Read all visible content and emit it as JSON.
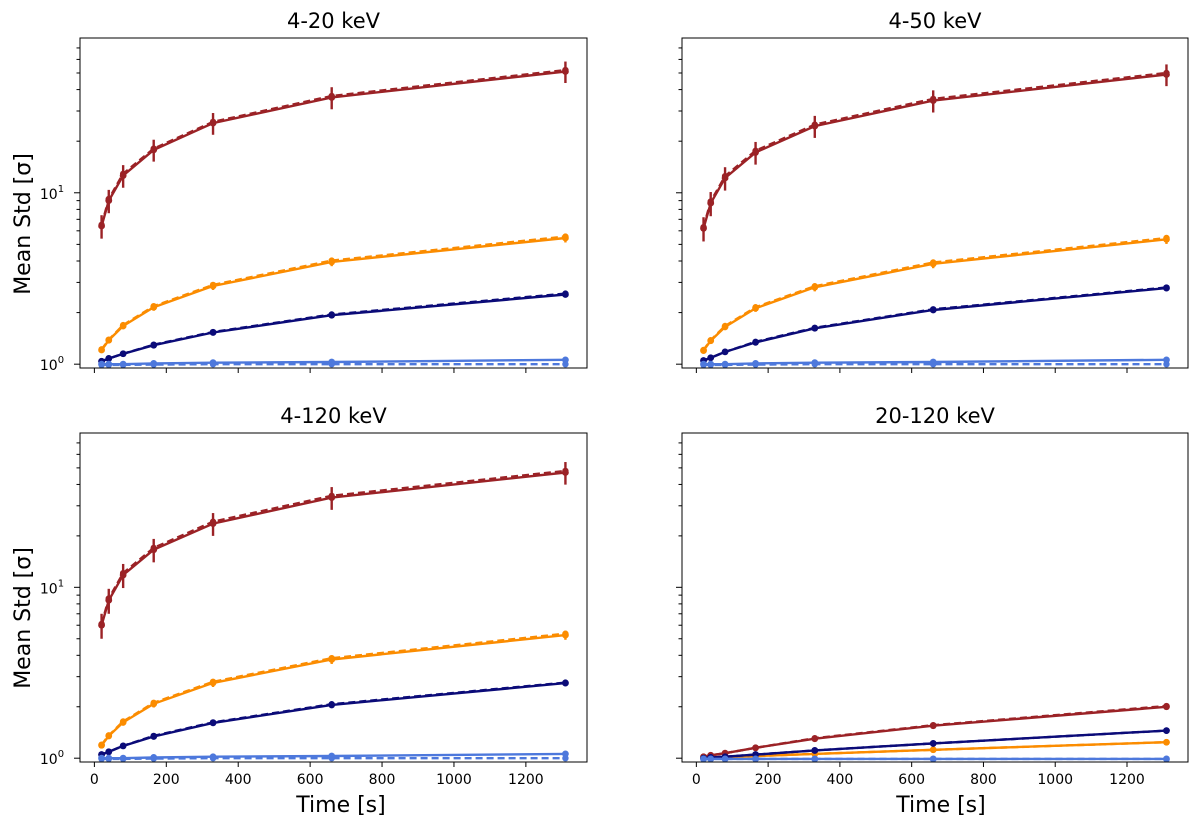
{
  "figure": {
    "ylabel": "Mean Std [σ]",
    "xlabel": "Time [s]",
    "colors": {
      "darkred": "#9b2226",
      "orange": "#fb8c00",
      "navy": "#0b0b78",
      "royalblue": "#4d78dc"
    }
  },
  "chart_data": [
    {
      "type": "line",
      "title": "4-20 keV",
      "xlabel": "",
      "ylabel": "Mean Std [σ]",
      "yscale": "log",
      "xlim": [
        -40,
        1370
      ],
      "ylim": [
        0.95,
        80
      ],
      "xticks": [
        0,
        200,
        400,
        600,
        800,
        1000,
        1200
      ],
      "yticks": [
        1,
        10
      ],
      "show_xticklabels": false,
      "show_yticklabels": true,
      "x": [
        20,
        40,
        80,
        165,
        330,
        660,
        1310
      ],
      "series": [
        {
          "color": "#9b2226",
          "solid": [
            6.4,
            9.0,
            12.6,
            17.8,
            25.5,
            36.0,
            51.0
          ],
          "dashed": [
            6.5,
            9.2,
            12.9,
            18.1,
            25.9,
            36.7,
            52.0
          ],
          "yerr": [
            1.0,
            1.4,
            1.9,
            2.6,
            3.7,
            5.3,
            7.3
          ]
        },
        {
          "color": "#fb8c00",
          "solid": [
            1.21,
            1.38,
            1.67,
            2.15,
            2.86,
            3.95,
            5.45
          ],
          "dashed": [
            1.22,
            1.39,
            1.69,
            2.18,
            2.9,
            4.02,
            5.55
          ],
          "yerr": [
            0.03,
            0.05,
            0.07,
            0.1,
            0.15,
            0.22,
            0.32
          ]
        },
        {
          "color": "#0b0b78",
          "solid": [
            1.04,
            1.08,
            1.15,
            1.29,
            1.53,
            1.93,
            2.55
          ],
          "dashed": [
            1.04,
            1.08,
            1.15,
            1.3,
            1.54,
            1.95,
            2.58
          ],
          "yerr": [
            0.01,
            0.01,
            0.02,
            0.02,
            0.03,
            0.04,
            0.05
          ]
        },
        {
          "color": "#4d78dc",
          "solid": [
            1.0,
            1.0,
            1.0,
            1.01,
            1.02,
            1.03,
            1.06
          ],
          "dashed": [
            0.99,
            0.99,
            0.99,
            0.995,
            1.0,
            1.0,
            1.0
          ],
          "yerr": [
            0.005,
            0.005,
            0.005,
            0.005,
            0.005,
            0.01,
            0.01
          ]
        }
      ]
    },
    {
      "type": "line",
      "title": "4-50 keV",
      "xlabel": "",
      "ylabel": "",
      "yscale": "log",
      "xlim": [
        -40,
        1370
      ],
      "ylim": [
        0.95,
        80
      ],
      "xticks": [
        0,
        200,
        400,
        600,
        800,
        1000,
        1200
      ],
      "yticks": [
        1,
        10
      ],
      "show_xticklabels": false,
      "show_yticklabels": false,
      "x": [
        20,
        40,
        80,
        165,
        330,
        660,
        1310
      ],
      "series": [
        {
          "color": "#9b2226",
          "solid": [
            6.2,
            8.7,
            12.2,
            17.2,
            24.5,
            34.5,
            49.0
          ],
          "dashed": [
            6.3,
            8.9,
            12.5,
            17.6,
            25.0,
            35.3,
            50.0
          ],
          "yerr": [
            1.0,
            1.4,
            1.9,
            2.6,
            3.6,
            5.1,
            7.1
          ]
        },
        {
          "color": "#fb8c00",
          "solid": [
            1.2,
            1.37,
            1.65,
            2.12,
            2.81,
            3.85,
            5.35
          ],
          "dashed": [
            1.21,
            1.38,
            1.67,
            2.15,
            2.85,
            3.92,
            5.45
          ],
          "yerr": [
            0.03,
            0.05,
            0.07,
            0.1,
            0.15,
            0.22,
            0.32
          ]
        },
        {
          "color": "#0b0b78",
          "solid": [
            1.05,
            1.09,
            1.18,
            1.34,
            1.62,
            2.07,
            2.78
          ],
          "dashed": [
            1.05,
            1.09,
            1.18,
            1.35,
            1.63,
            2.09,
            2.8
          ],
          "yerr": [
            0.01,
            0.01,
            0.02,
            0.02,
            0.03,
            0.04,
            0.05
          ]
        },
        {
          "color": "#4d78dc",
          "solid": [
            1.0,
            1.0,
            1.0,
            1.01,
            1.02,
            1.03,
            1.06
          ],
          "dashed": [
            0.99,
            0.99,
            0.99,
            0.995,
            1.0,
            1.0,
            1.0
          ],
          "yerr": [
            0.005,
            0.005,
            0.005,
            0.005,
            0.005,
            0.01,
            0.01
          ]
        }
      ]
    },
    {
      "type": "line",
      "title": "4-120 keV",
      "xlabel": "Time [s]",
      "ylabel": "Mean Std [σ]",
      "yscale": "log",
      "xlim": [
        -40,
        1370
      ],
      "ylim": [
        0.95,
        80
      ],
      "xticks": [
        0,
        200,
        400,
        600,
        800,
        1000,
        1200
      ],
      "yticks": [
        1,
        10
      ],
      "show_xticklabels": true,
      "show_yticklabels": true,
      "x": [
        20,
        40,
        80,
        165,
        330,
        660,
        1310
      ],
      "series": [
        {
          "color": "#9b2226",
          "solid": [
            6.0,
            8.4,
            11.8,
            16.6,
            23.6,
            33.5,
            47.0
          ],
          "dashed": [
            6.1,
            8.6,
            12.1,
            17.0,
            24.2,
            34.3,
            48.0
          ],
          "yerr": [
            1.0,
            1.4,
            1.9,
            2.6,
            3.6,
            5.1,
            7.1
          ]
        },
        {
          "color": "#fb8c00",
          "solid": [
            1.19,
            1.35,
            1.62,
            2.08,
            2.76,
            3.78,
            5.25
          ],
          "dashed": [
            1.2,
            1.36,
            1.64,
            2.11,
            2.8,
            3.85,
            5.35
          ],
          "yerr": [
            0.03,
            0.05,
            0.07,
            0.1,
            0.15,
            0.22,
            0.32
          ]
        },
        {
          "color": "#0b0b78",
          "solid": [
            1.05,
            1.09,
            1.18,
            1.34,
            1.61,
            2.05,
            2.75
          ],
          "dashed": [
            1.05,
            1.09,
            1.18,
            1.35,
            1.62,
            2.07,
            2.77
          ],
          "yerr": [
            0.01,
            0.01,
            0.02,
            0.02,
            0.03,
            0.04,
            0.05
          ]
        },
        {
          "color": "#4d78dc",
          "solid": [
            1.0,
            1.0,
            1.0,
            1.01,
            1.02,
            1.03,
            1.06
          ],
          "dashed": [
            0.99,
            0.99,
            0.99,
            0.995,
            1.0,
            1.0,
            1.0
          ],
          "yerr": [
            0.005,
            0.005,
            0.005,
            0.005,
            0.005,
            0.01,
            0.01
          ]
        }
      ]
    },
    {
      "type": "line",
      "title": "20-120 keV",
      "xlabel": "Time [s]",
      "ylabel": "",
      "yscale": "log",
      "xlim": [
        -40,
        1370
      ],
      "ylim": [
        0.95,
        80
      ],
      "xticks": [
        0,
        200,
        400,
        600,
        800,
        1000,
        1200
      ],
      "yticks": [
        1,
        10
      ],
      "show_xticklabels": true,
      "show_yticklabels": false,
      "x": [
        20,
        40,
        80,
        165,
        330,
        660,
        1310
      ],
      "series": [
        {
          "color": "#9b2226",
          "solid": [
            1.02,
            1.04,
            1.07,
            1.15,
            1.3,
            1.55,
            2.0
          ],
          "dashed": [
            1.02,
            1.04,
            1.07,
            1.15,
            1.31,
            1.56,
            2.02
          ],
          "yerr": [
            0.01,
            0.01,
            0.01,
            0.02,
            0.03,
            0.04,
            0.05
          ]
        },
        {
          "color": "#fb8c00",
          "solid": [
            1.0,
            1.0,
            1.01,
            1.03,
            1.06,
            1.12,
            1.24
          ],
          "dashed": [
            1.0,
            1.0,
            1.01,
            1.03,
            1.06,
            1.12,
            1.24
          ],
          "yerr": [
            0.005,
            0.005,
            0.005,
            0.01,
            0.01,
            0.01,
            0.02
          ]
        },
        {
          "color": "#0b0b78",
          "solid": [
            1.0,
            1.01,
            1.02,
            1.05,
            1.11,
            1.22,
            1.45
          ],
          "dashed": [
            1.0,
            1.01,
            1.02,
            1.05,
            1.11,
            1.22,
            1.45
          ],
          "yerr": [
            0.005,
            0.005,
            0.005,
            0.01,
            0.01,
            0.01,
            0.02
          ]
        },
        {
          "color": "#4d78dc",
          "solid": [
            0.99,
            0.99,
            0.99,
            0.99,
            0.99,
            0.99,
            0.99
          ],
          "dashed": [
            0.99,
            0.99,
            0.99,
            0.99,
            0.99,
            0.99,
            0.99
          ],
          "yerr": [
            0.003,
            0.003,
            0.003,
            0.003,
            0.003,
            0.003,
            0.003
          ]
        }
      ]
    }
  ]
}
